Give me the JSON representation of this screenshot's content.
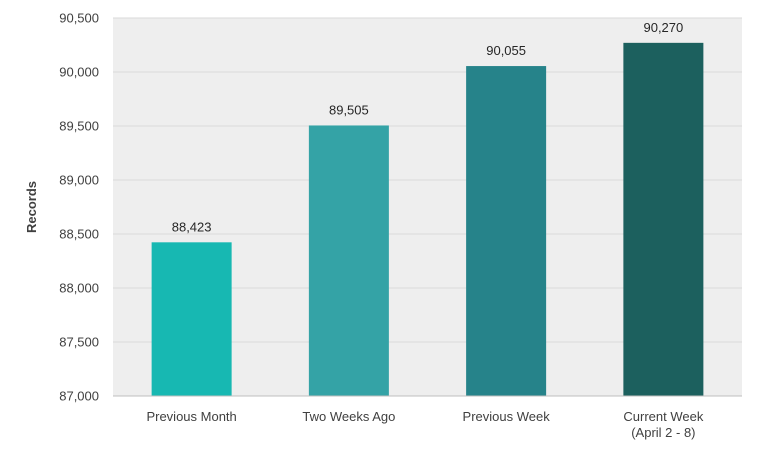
{
  "chart_data": {
    "type": "bar",
    "categories": [
      "Previous Month",
      "Two Weeks Ago",
      "Previous Week",
      "Current Week (April 2 - 8)"
    ],
    "category_lines": [
      [
        "Previous Month"
      ],
      [
        "Two Weeks Ago"
      ],
      [
        "Previous Week"
      ],
      [
        "Current Week",
        "(April 2 - 8)"
      ]
    ],
    "values": [
      88423,
      89505,
      90055,
      90270
    ],
    "value_labels": [
      "88,423",
      "89,505",
      "90,055",
      "90,270"
    ],
    "bar_colors": [
      "#17b8b2",
      "#34a3a6",
      "#26838a",
      "#1c605e"
    ],
    "ylabel": "Records",
    "xlabel": "",
    "ylim": [
      87000,
      90500
    ],
    "yticks": [
      87000,
      87500,
      88000,
      88500,
      89000,
      89500,
      90000,
      90500
    ],
    "ytick_labels": [
      "87,000",
      "87,500",
      "88,000",
      "88,500",
      "89,000",
      "89,500",
      "90,000",
      "90,500"
    ],
    "grid": true,
    "colors": {
      "plot_background": "#eeeeee",
      "gridline": "#d9d9d9",
      "axis": "#bfbfbf"
    }
  }
}
